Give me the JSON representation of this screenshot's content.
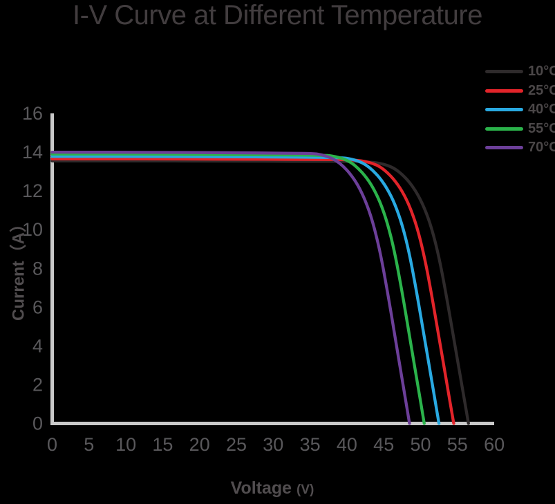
{
  "colors": {
    "background": "#000000",
    "axis": "#c9c9c9",
    "tick_text": "#59585b",
    "title_text": "#423d3f",
    "axis_label_text": "#514d4f",
    "legend_text": "#4b4748"
  },
  "chart_data": {
    "type": "line",
    "title": "I-V Curve at Different Temperature",
    "xlabel": "Voltage",
    "xlabel_unit": "(V)",
    "ylabel": "Current（A）",
    "xlim": [
      0,
      60
    ],
    "ylim": [
      0,
      16
    ],
    "xticks": [
      0,
      5,
      10,
      15,
      20,
      25,
      30,
      35,
      40,
      45,
      50,
      55,
      60
    ],
    "yticks": [
      0,
      2,
      4,
      6,
      8,
      10,
      12,
      14,
      16
    ],
    "grid": false,
    "legend_position": "top-right",
    "series": [
      {
        "name": "10°C",
        "color": "#2e2a2b",
        "isc": 13.55,
        "voc": 56.5,
        "points": [
          [
            0,
            13.55
          ],
          [
            5,
            13.55
          ],
          [
            10,
            13.55
          ],
          [
            15,
            13.55
          ],
          [
            20,
            13.54
          ],
          [
            25,
            13.54
          ],
          [
            30,
            13.53
          ],
          [
            35,
            13.53
          ],
          [
            38,
            13.52
          ],
          [
            41.5,
            13.52
          ],
          [
            43.5,
            13.48
          ],
          [
            44.5,
            13.42
          ],
          [
            45.5,
            13.32
          ],
          [
            46.5,
            13.15
          ],
          [
            47.5,
            12.85
          ],
          [
            48.5,
            12.45
          ],
          [
            49.5,
            11.9
          ],
          [
            50.5,
            11.15
          ],
          [
            51.5,
            10.1
          ],
          [
            52.5,
            8.6
          ],
          [
            53.5,
            6.6
          ],
          [
            54.5,
            4.4
          ],
          [
            55.5,
            2.2
          ],
          [
            56.5,
            0
          ]
        ]
      },
      {
        "name": "25°C",
        "color": "#e2242a",
        "isc": 13.65,
        "voc": 54.5,
        "points": [
          [
            0,
            13.65
          ],
          [
            5,
            13.65
          ],
          [
            10,
            13.65
          ],
          [
            15,
            13.65
          ],
          [
            20,
            13.64
          ],
          [
            25,
            13.64
          ],
          [
            30,
            13.63
          ],
          [
            35,
            13.62
          ],
          [
            39.5,
            13.62
          ],
          [
            41.5,
            13.58
          ],
          [
            42.5,
            13.52
          ],
          [
            43.5,
            13.42
          ],
          [
            44.5,
            13.25
          ],
          [
            45.5,
            12.95
          ],
          [
            46.5,
            12.54
          ],
          [
            47.5,
            11.99
          ],
          [
            48.5,
            11.23
          ],
          [
            49.5,
            10.17
          ],
          [
            50.5,
            8.66
          ],
          [
            51.5,
            6.65
          ],
          [
            52.5,
            4.43
          ],
          [
            53.5,
            2.22
          ],
          [
            54.5,
            0
          ]
        ]
      },
      {
        "name": "40°C",
        "color": "#29a9e1",
        "isc": 13.78,
        "voc": 52.5,
        "points": [
          [
            0,
            13.78
          ],
          [
            5,
            13.78
          ],
          [
            10,
            13.78
          ],
          [
            15,
            13.77
          ],
          [
            20,
            13.77
          ],
          [
            25,
            13.76
          ],
          [
            30,
            13.75
          ],
          [
            35,
            13.74
          ],
          [
            37.5,
            13.72
          ],
          [
            39.5,
            13.71
          ],
          [
            40.5,
            13.65
          ],
          [
            41.5,
            13.55
          ],
          [
            42.5,
            13.37
          ],
          [
            43.5,
            13.07
          ],
          [
            44.5,
            12.66
          ],
          [
            45.5,
            12.1
          ],
          [
            46.5,
            11.34
          ],
          [
            47.5,
            10.27
          ],
          [
            48.5,
            8.75
          ],
          [
            49.5,
            6.71
          ],
          [
            50.5,
            4.47
          ],
          [
            51.5,
            2.24
          ],
          [
            52.5,
            0
          ]
        ]
      },
      {
        "name": "55°C",
        "color": "#2bb34b",
        "isc": 13.9,
        "voc": 50.5,
        "points": [
          [
            0,
            13.9
          ],
          [
            5,
            13.9
          ],
          [
            10,
            13.9
          ],
          [
            15,
            13.89
          ],
          [
            20,
            13.88
          ],
          [
            25,
            13.87
          ],
          [
            30,
            13.86
          ],
          [
            33,
            13.85
          ],
          [
            35.5,
            13.84
          ],
          [
            37.5,
            13.83
          ],
          [
            38.5,
            13.77
          ],
          [
            39.5,
            13.66
          ],
          [
            40.5,
            13.49
          ],
          [
            41.5,
            13.18
          ],
          [
            42.5,
            12.77
          ],
          [
            43.5,
            12.21
          ],
          [
            44.5,
            11.44
          ],
          [
            45.5,
            10.36
          ],
          [
            46.5,
            8.82
          ],
          [
            47.5,
            6.77
          ],
          [
            48.5,
            4.51
          ],
          [
            49.5,
            2.26
          ],
          [
            50.5,
            0
          ]
        ]
      },
      {
        "name": "70°C",
        "color": "#6c3f99",
        "isc": 14.0,
        "voc": 48.5,
        "points": [
          [
            0,
            14.0
          ],
          [
            5,
            14.0
          ],
          [
            10,
            13.99
          ],
          [
            15,
            13.99
          ],
          [
            20,
            13.98
          ],
          [
            25,
            13.97
          ],
          [
            30,
            13.95
          ],
          [
            33,
            13.94
          ],
          [
            35.5,
            13.93
          ],
          [
            36.5,
            13.87
          ],
          [
            37.5,
            13.76
          ],
          [
            38.5,
            13.58
          ],
          [
            39.5,
            13.28
          ],
          [
            40.5,
            12.86
          ],
          [
            41.5,
            12.3
          ],
          [
            42.5,
            11.52
          ],
          [
            43.5,
            10.43
          ],
          [
            44.5,
            8.89
          ],
          [
            45.5,
            6.82
          ],
          [
            46.5,
            4.55
          ],
          [
            47.5,
            2.27
          ],
          [
            48.5,
            0
          ]
        ]
      }
    ]
  }
}
